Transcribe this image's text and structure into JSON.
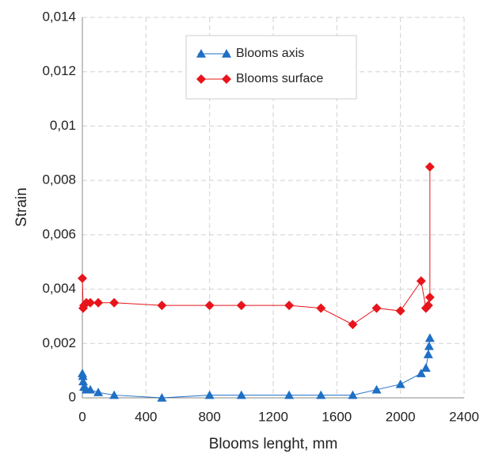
{
  "chart_data": {
    "type": "line",
    "x_label": "Blooms lenght, mm",
    "y_label": "Strain",
    "xlim": [
      0,
      2400
    ],
    "xticks": [
      0,
      400,
      800,
      1200,
      1600,
      2000,
      2400
    ],
    "ylim": [
      0,
      0.014
    ],
    "yticks": [
      0,
      {
        "value": 0.002,
        "label": "0,002"
      },
      {
        "value": 0.004,
        "label": "0,004"
      },
      {
        "value": 0.006,
        "label": "0,006"
      },
      {
        "value": 0.008,
        "label": "0,008"
      },
      {
        "value": 0.01,
        "label": "0,01"
      },
      {
        "value": 0.012,
        "label": "0,012"
      },
      {
        "value": 0.014,
        "label": "0,014"
      }
    ],
    "grid": true,
    "legend": "upper center",
    "series": [
      {
        "name": "Blooms axis",
        "color": "#1f6fc4",
        "marker": "triangle",
        "x": [
          0,
          3,
          5,
          10,
          25,
          50,
          100,
          200,
          500,
          800,
          1000,
          1300,
          1500,
          1700,
          1850,
          2000,
          2130,
          2160,
          2175,
          2180,
          2185
        ],
        "values": [
          0.0009,
          0.0008,
          0.0006,
          0.0004,
          0.0003,
          0.0003,
          0.0002,
          0.0001,
          0,
          0.0001,
          0.0001,
          0.0001,
          0.0001,
          0.0001,
          0.0003,
          0.0005,
          0.0009,
          0.0011,
          0.0016,
          0.0019,
          0.0022
        ]
      },
      {
        "name": "Blooms surface",
        "color": "#e8141b",
        "marker": "diamond",
        "x": [
          0,
          5,
          10,
          25,
          50,
          100,
          200,
          500,
          800,
          1000,
          1300,
          1500,
          1700,
          1850,
          2000,
          2130,
          2160,
          2175,
          2185,
          2185
        ],
        "values": [
          0.0044,
          0.0033,
          0.0034,
          0.0035,
          0.0035,
          0.0035,
          0.0035,
          0.0034,
          0.0034,
          0.0034,
          0.0034,
          0.0033,
          0.0027,
          0.0033,
          0.0032,
          0.0043,
          0.0033,
          0.0034,
          0.0037,
          0.0085
        ]
      }
    ]
  }
}
